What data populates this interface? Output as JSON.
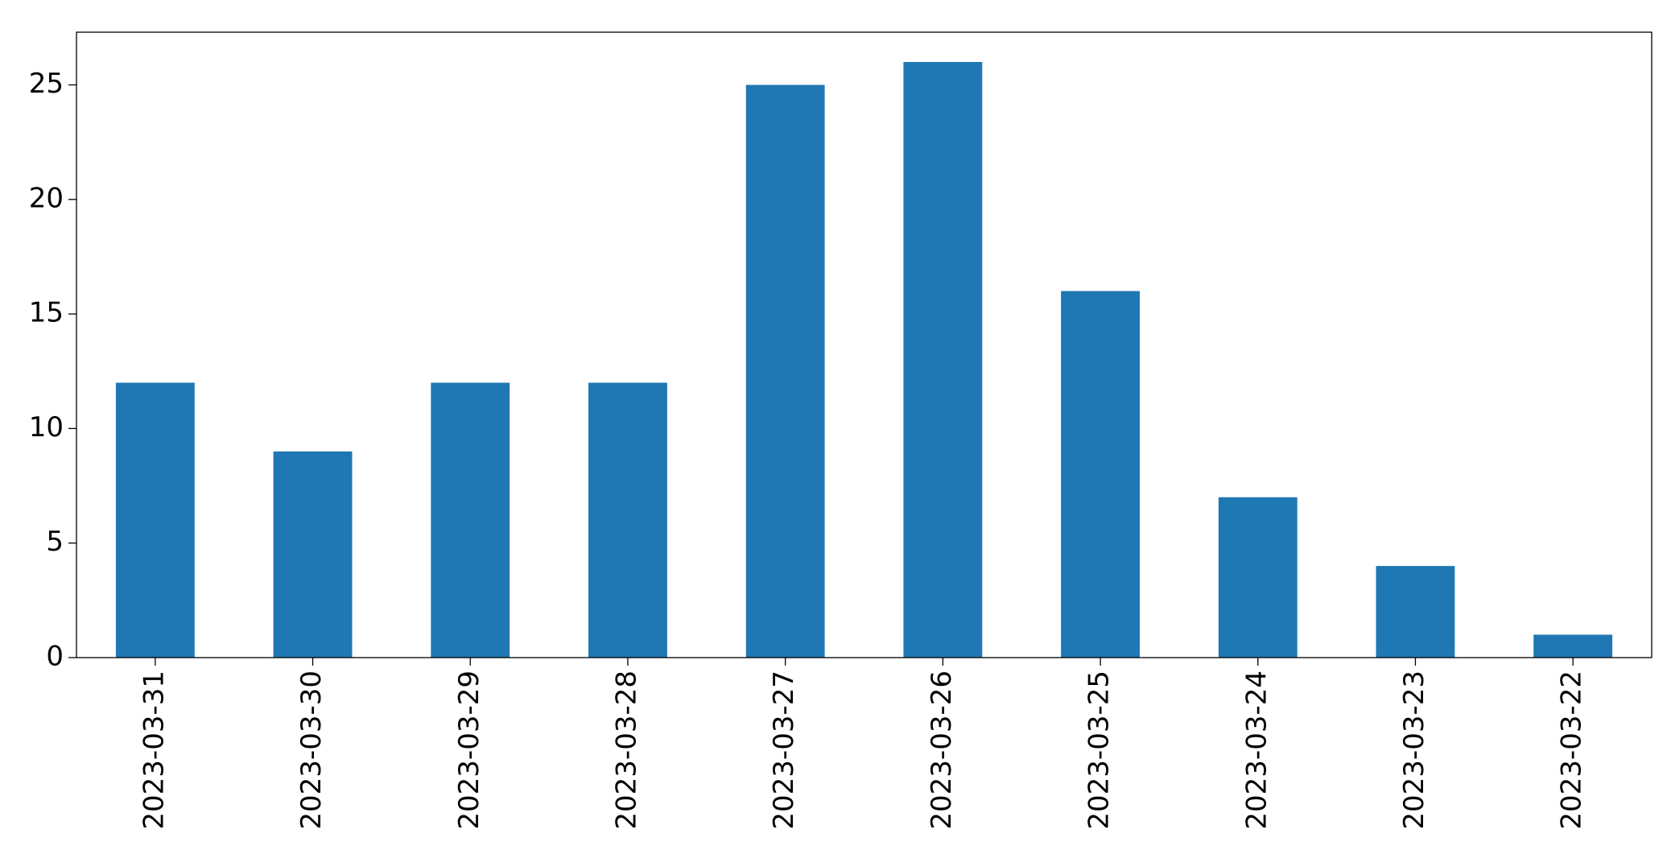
{
  "chart_data": {
    "type": "bar",
    "categories": [
      "2023-03-31",
      "2023-03-30",
      "2023-03-29",
      "2023-03-28",
      "2023-03-27",
      "2023-03-26",
      "2023-03-25",
      "2023-03-24",
      "2023-03-23",
      "2023-03-22"
    ],
    "values": [
      12,
      9,
      12,
      12,
      25,
      26,
      16,
      7,
      4,
      1
    ],
    "color": "#1f77b4",
    "ylim": [
      0,
      27.3
    ],
    "yticks": [
      0,
      5,
      10,
      15,
      20,
      25
    ],
    "grid": false
  }
}
